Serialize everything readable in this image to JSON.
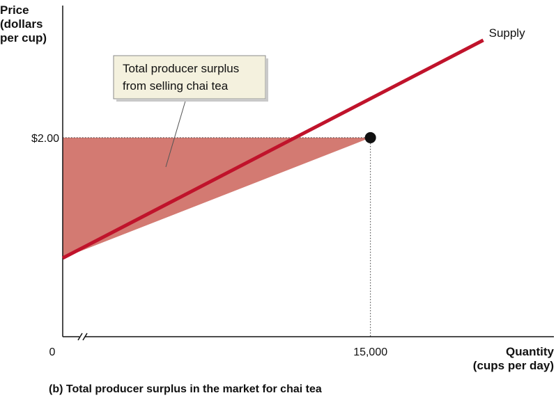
{
  "colors": {
    "supply_line": "#c0132b",
    "surplus_fill": "#d37a72",
    "callout_bg": "#f4f1de",
    "callout_border": "#8a8a8a",
    "axis": "#111111",
    "point": "#111111"
  },
  "chart_data": {
    "type": "line",
    "title": "(b) Total producer surplus in the market for chai tea",
    "ylabel": [
      "Price",
      "(dollars",
      "per cup)"
    ],
    "xlabel": [
      "Quantity",
      "(cups per day)"
    ],
    "xlim": [
      0,
      18000
    ],
    "ylim": [
      0,
      2.44
    ],
    "axis_break": "x",
    "x_ticks": [
      {
        "value": 0,
        "label": "0"
      },
      {
        "value": 15000,
        "label": "15,000"
      }
    ],
    "y_ticks": [
      {
        "value": 2.0,
        "label": "$2.00"
      }
    ],
    "series": [
      {
        "name": "Supply",
        "x": [
          0,
          20500
        ],
        "y": [
          0.79,
          2.98
        ]
      }
    ],
    "equilibrium": {
      "x": 15000,
      "y": 2.0
    },
    "shaded_region": {
      "x": [
        0,
        15000,
        0
      ],
      "y": [
        0.79,
        2.0,
        2.0
      ]
    },
    "annotation": {
      "lines": [
        "Total producer surplus",
        "from selling chai tea"
      ]
    }
  }
}
